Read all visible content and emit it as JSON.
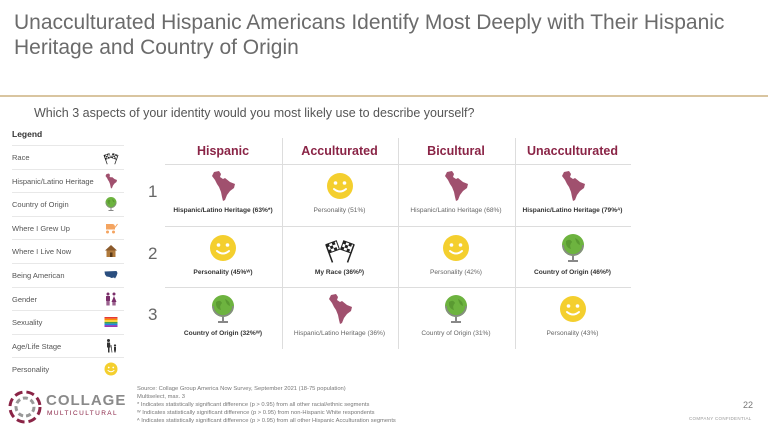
{
  "title": "Unacculturated Hispanic Americans Identify Most Deeply with Their Hispanic Heritage and Country of Origin",
  "question": "Which 3 aspects of your identity would you most likely use to describe yourself?",
  "legend": {
    "title": "Legend",
    "items": [
      {
        "label": "Race",
        "icon": "flags-icon"
      },
      {
        "label": "Hispanic/Latino Heritage",
        "icon": "latin-america-map-icon"
      },
      {
        "label": "Country of Origin",
        "icon": "globe-icon"
      },
      {
        "label": "Where I Grew Up",
        "icon": "stroller-icon"
      },
      {
        "label": "Where I Live Now",
        "icon": "house-icon"
      },
      {
        "label": "Being American",
        "icon": "usa-map-icon"
      },
      {
        "label": "Gender",
        "icon": "gender-icon"
      },
      {
        "label": "Sexuality",
        "icon": "rainbow-flag-icon"
      },
      {
        "label": "Age/Life Stage",
        "icon": "age-icon"
      },
      {
        "label": "Personality",
        "icon": "smiley-icon"
      }
    ]
  },
  "columns": [
    "Hispanic",
    "Acculturated",
    "Bicultural",
    "Unacculturated"
  ],
  "ranks": [
    "1",
    "2",
    "3"
  ],
  "cells": [
    [
      {
        "icon": "latin-america-map-icon",
        "caption": "Hispanic/Latino Heritage (63%*)",
        "bold": true
      },
      {
        "icon": "smiley-icon",
        "caption": "Personality (51%)",
        "bold": false
      },
      {
        "icon": "latin-america-map-icon",
        "caption": "Hispanic/Latino Heritage (68%)",
        "bold": false
      },
      {
        "icon": "latin-america-map-icon",
        "caption": "Hispanic/Latino Heritage (79%ᴬ)",
        "bold": true
      }
    ],
    [
      {
        "icon": "smiley-icon",
        "caption": "Personality (45%ᵂ)",
        "bold": true
      },
      {
        "icon": "flags-icon",
        "caption": "My Race (36%ᴮ)",
        "bold": true
      },
      {
        "icon": "smiley-icon",
        "caption": "Personality (42%)",
        "bold": false
      },
      {
        "icon": "globe-icon",
        "caption": "Country of Origin (46%ᴮ)",
        "bold": true
      }
    ],
    [
      {
        "icon": "globe-icon",
        "caption": "Country of Origin (32%ᵂ)",
        "bold": true
      },
      {
        "icon": "latin-america-map-icon",
        "caption": "Hispanic/Latino Heritage (36%)",
        "bold": false
      },
      {
        "icon": "globe-icon",
        "caption": "Country of Origin (31%)",
        "bold": false
      },
      {
        "icon": "smiley-icon",
        "caption": "Personality (43%)",
        "bold": false
      }
    ]
  ],
  "source": [
    "Source: Collage Group America Now Survey, September 2021 (18-75 population)",
    "Multiselect, max. 3",
    "* Indicates statistically significant difference (p > 0.95) from all other racial/ethnic segments",
    "ᵂ Indicates statistically significant difference (p > 0.95) from non-Hispanic White respondents",
    "ᴬ Indicates statistically significant difference (p > 0.95) from all other Hispanic Acculturation segments"
  ],
  "logo": {
    "name": "COLLAGE",
    "sub": "MULTICULTURAL"
  },
  "page_number": "22",
  "confidential": "COMPANY CONFIDENTIAL",
  "colors": {
    "accent": "#8a2446",
    "rule": "#d9c5a0",
    "map": "#a0506e",
    "smiley": "#f4cf2e",
    "globe": "#6db33f"
  }
}
